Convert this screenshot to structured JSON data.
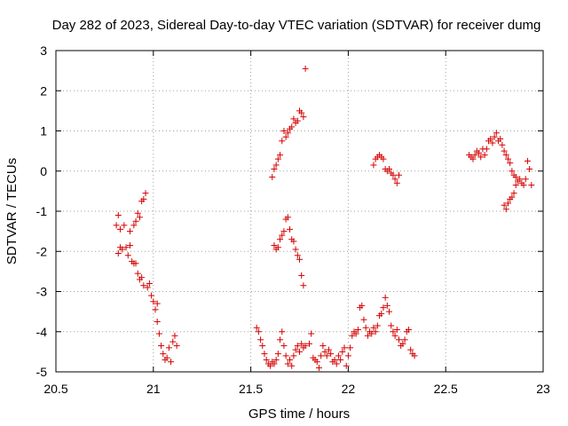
{
  "chart_data": {
    "type": "scatter",
    "title": "Day 282 of 2023, Sidereal Day-to-day VTEC variation (SDTVAR) for receiver dumg",
    "xlabel": "GPS time / hours",
    "ylabel": "SDTVAR / TECUs",
    "xlim": [
      20.5,
      23
    ],
    "ylim": [
      -5,
      3
    ],
    "xticks": [
      20.5,
      21,
      21.5,
      22,
      22.5,
      23
    ],
    "xtick_labels": [
      "20.5",
      "21",
      "21.5",
      "22",
      "22.5",
      "23"
    ],
    "yticks": [
      -5,
      -4,
      -3,
      -2,
      -1,
      0,
      1,
      2,
      3
    ],
    "ytick_labels": [
      "-5",
      "-4",
      "-3",
      "-2",
      "-1",
      "0",
      "1",
      "2",
      "3"
    ],
    "grid": true,
    "marker": "plus",
    "color": "#d40000",
    "series": [
      {
        "name": "SDTVAR",
        "points": [
          [
            20.81,
            -1.35
          ],
          [
            20.82,
            -2.05
          ],
          [
            20.82,
            -1.1
          ],
          [
            20.83,
            -1.9
          ],
          [
            20.83,
            -1.45
          ],
          [
            20.84,
            -1.95
          ],
          [
            20.85,
            -1.35
          ],
          [
            20.86,
            -1.9
          ],
          [
            20.87,
            -2.1
          ],
          [
            20.88,
            -1.85
          ],
          [
            20.88,
            -1.5
          ],
          [
            20.89,
            -2.25
          ],
          [
            20.9,
            -2.3
          ],
          [
            20.9,
            -1.35
          ],
          [
            20.91,
            -1.25
          ],
          [
            20.91,
            -2.3
          ],
          [
            20.92,
            -1.05
          ],
          [
            20.92,
            -2.55
          ],
          [
            20.93,
            -1.15
          ],
          [
            20.93,
            -2.7
          ],
          [
            20.94,
            -0.75
          ],
          [
            20.94,
            -2.65
          ],
          [
            20.95,
            -0.7
          ],
          [
            20.95,
            -2.85
          ],
          [
            20.96,
            -0.55
          ],
          [
            20.97,
            -2.9
          ],
          [
            20.98,
            -2.8
          ],
          [
            20.99,
            -3.1
          ],
          [
            21.0,
            -3.25
          ],
          [
            21.01,
            -3.45
          ],
          [
            21.02,
            -3.3
          ],
          [
            21.02,
            -3.75
          ],
          [
            21.03,
            -4.05
          ],
          [
            21.04,
            -4.35
          ],
          [
            21.05,
            -4.55
          ],
          [
            21.06,
            -4.7
          ],
          [
            21.07,
            -4.65
          ],
          [
            21.08,
            -4.4
          ],
          [
            21.09,
            -4.75
          ],
          [
            21.1,
            -4.25
          ],
          [
            21.11,
            -4.1
          ],
          [
            21.12,
            -4.35
          ],
          [
            21.53,
            -3.9
          ],
          [
            21.54,
            -4.0
          ],
          [
            21.55,
            -4.2
          ],
          [
            21.56,
            -4.35
          ],
          [
            21.57,
            -4.55
          ],
          [
            21.58,
            -4.7
          ],
          [
            21.59,
            -4.8
          ],
          [
            21.6,
            -4.85
          ],
          [
            21.61,
            -4.75
          ],
          [
            21.62,
            -4.8
          ],
          [
            21.63,
            -4.7
          ],
          [
            21.64,
            -4.55
          ],
          [
            21.65,
            -4.2
          ],
          [
            21.66,
            -4.0
          ],
          [
            21.67,
            -4.35
          ],
          [
            21.68,
            -4.6
          ],
          [
            21.69,
            -4.8
          ],
          [
            21.7,
            -4.7
          ],
          [
            21.71,
            -4.85
          ],
          [
            21.72,
            -4.6
          ],
          [
            21.73,
            -4.45
          ],
          [
            21.74,
            -4.35
          ],
          [
            21.75,
            -4.5
          ],
          [
            21.76,
            -4.3
          ],
          [
            21.77,
            -4.4
          ],
          [
            21.78,
            -4.35
          ],
          [
            21.8,
            -4.3
          ],
          [
            21.81,
            -4.05
          ],
          [
            21.82,
            -4.65
          ],
          [
            21.83,
            -4.7
          ],
          [
            21.84,
            -4.75
          ],
          [
            21.85,
            -4.9
          ],
          [
            21.86,
            -4.6
          ],
          [
            21.87,
            -4.35
          ],
          [
            21.88,
            -4.5
          ],
          [
            21.89,
            -4.6
          ],
          [
            21.9,
            -4.45
          ],
          [
            21.91,
            -4.55
          ],
          [
            21.92,
            -4.75
          ],
          [
            21.93,
            -4.7
          ],
          [
            21.94,
            -4.8
          ],
          [
            21.95,
            -4.6
          ],
          [
            21.96,
            -4.7
          ],
          [
            21.97,
            -4.5
          ],
          [
            21.98,
            -4.4
          ],
          [
            21.99,
            -4.85
          ],
          [
            22.0,
            -4.6
          ],
          [
            22.01,
            -4.4
          ],
          [
            22.02,
            -4.1
          ],
          [
            22.03,
            -4.0
          ],
          [
            22.04,
            -4.05
          ],
          [
            22.05,
            -3.95
          ],
          [
            22.06,
            -3.4
          ],
          [
            22.07,
            -3.35
          ],
          [
            22.08,
            -3.7
          ],
          [
            22.09,
            -3.9
          ],
          [
            22.1,
            -4.1
          ],
          [
            22.11,
            -4.0
          ],
          [
            22.12,
            -4.05
          ],
          [
            22.13,
            -3.9
          ],
          [
            22.14,
            -4.0
          ],
          [
            22.15,
            -3.85
          ],
          [
            22.16,
            -3.6
          ],
          [
            22.17,
            -3.55
          ],
          [
            22.18,
            -3.4
          ],
          [
            22.19,
            -3.15
          ],
          [
            22.2,
            -3.35
          ],
          [
            22.21,
            -3.5
          ],
          [
            22.22,
            -3.85
          ],
          [
            22.23,
            -4.0
          ],
          [
            22.24,
            -4.1
          ],
          [
            22.25,
            -3.95
          ],
          [
            22.26,
            -4.2
          ],
          [
            22.27,
            -4.35
          ],
          [
            22.28,
            -4.3
          ],
          [
            22.29,
            -4.2
          ],
          [
            22.3,
            -4.0
          ],
          [
            22.31,
            -3.95
          ],
          [
            22.32,
            -4.45
          ],
          [
            22.33,
            -4.55
          ],
          [
            22.34,
            -4.6
          ],
          [
            21.61,
            -0.15
          ],
          [
            21.62,
            0.05
          ],
          [
            21.63,
            0.15
          ],
          [
            21.64,
            0.3
          ],
          [
            21.65,
            0.4
          ],
          [
            21.66,
            0.75
          ],
          [
            21.67,
            1.0
          ],
          [
            21.68,
            0.85
          ],
          [
            21.69,
            0.95
          ],
          [
            21.7,
            1.05
          ],
          [
            21.71,
            1.1
          ],
          [
            21.72,
            1.3
          ],
          [
            21.73,
            1.2
          ],
          [
            21.74,
            1.25
          ],
          [
            21.75,
            1.5
          ],
          [
            21.76,
            1.45
          ],
          [
            21.77,
            1.35
          ],
          [
            21.78,
            2.55
          ],
          [
            21.62,
            -1.85
          ],
          [
            21.63,
            -1.95
          ],
          [
            21.64,
            -1.9
          ],
          [
            21.65,
            -1.7
          ],
          [
            21.66,
            -1.6
          ],
          [
            21.67,
            -1.5
          ],
          [
            21.68,
            -1.2
          ],
          [
            21.69,
            -1.15
          ],
          [
            21.7,
            -1.45
          ],
          [
            21.71,
            -1.7
          ],
          [
            21.72,
            -1.75
          ],
          [
            21.73,
            -1.95
          ],
          [
            21.74,
            -2.1
          ],
          [
            21.75,
            -2.2
          ],
          [
            21.76,
            -2.6
          ],
          [
            21.77,
            -2.85
          ],
          [
            22.13,
            0.15
          ],
          [
            22.14,
            0.3
          ],
          [
            22.15,
            0.35
          ],
          [
            22.16,
            0.4
          ],
          [
            22.17,
            0.35
          ],
          [
            22.18,
            0.3
          ],
          [
            22.19,
            0.05
          ],
          [
            22.2,
            0.0
          ],
          [
            22.21,
            0.05
          ],
          [
            22.22,
            -0.05
          ],
          [
            22.23,
            -0.1
          ],
          [
            22.24,
            -0.2
          ],
          [
            22.25,
            -0.3
          ],
          [
            22.26,
            -0.1
          ],
          [
            22.62,
            0.4
          ],
          [
            22.63,
            0.35
          ],
          [
            22.64,
            0.3
          ],
          [
            22.65,
            0.4
          ],
          [
            22.66,
            0.5
          ],
          [
            22.67,
            0.45
          ],
          [
            22.68,
            0.35
          ],
          [
            22.69,
            0.55
          ],
          [
            22.7,
            0.4
          ],
          [
            22.71,
            0.55
          ],
          [
            22.72,
            0.75
          ],
          [
            22.73,
            0.8
          ],
          [
            22.74,
            0.7
          ],
          [
            22.75,
            0.85
          ],
          [
            22.76,
            0.95
          ],
          [
            22.77,
            0.75
          ],
          [
            22.78,
            0.8
          ],
          [
            22.79,
            0.65
          ],
          [
            22.8,
            0.5
          ],
          [
            22.81,
            0.4
          ],
          [
            22.82,
            0.3
          ],
          [
            22.83,
            0.2
          ],
          [
            22.84,
            0.0
          ],
          [
            22.85,
            -0.1
          ],
          [
            22.86,
            -0.15
          ],
          [
            22.87,
            -0.25
          ],
          [
            22.88,
            -0.2
          ],
          [
            22.89,
            -0.3
          ],
          [
            22.9,
            -0.35
          ],
          [
            22.91,
            -0.2
          ],
          [
            22.92,
            0.25
          ],
          [
            22.93,
            0.05
          ],
          [
            22.94,
            -0.35
          ],
          [
            22.8,
            -0.85
          ],
          [
            22.81,
            -0.95
          ],
          [
            22.82,
            -0.8
          ],
          [
            22.83,
            -0.7
          ],
          [
            22.84,
            -0.65
          ],
          [
            22.85,
            -0.55
          ],
          [
            22.86,
            -0.35
          ]
        ]
      }
    ]
  }
}
